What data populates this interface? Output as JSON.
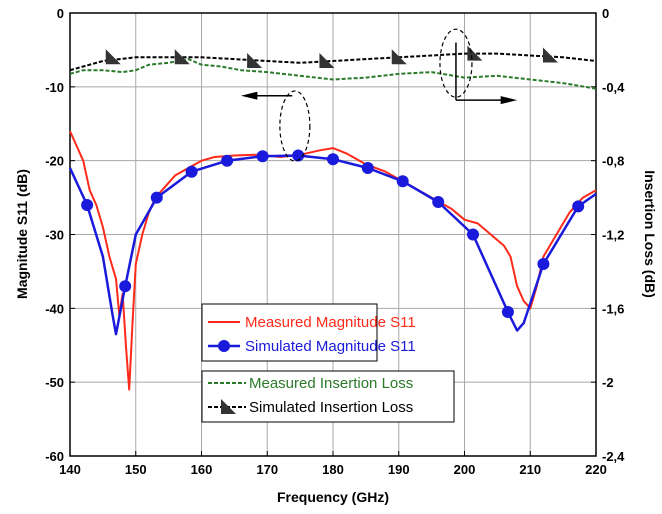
{
  "chart_data": {
    "type": "line",
    "xlabel": "Frequency (GHz)",
    "ylabel_left": "Magnitude S11 (dB)",
    "ylabel_right": "Insertion Loss (dB)",
    "xlim": [
      140,
      220
    ],
    "ylim_left": [
      -60,
      0
    ],
    "ylim_right": [
      -2.4,
      0
    ],
    "x_ticks": [
      "140",
      "150",
      "160",
      "170",
      "180",
      "190",
      "200",
      "210",
      "220"
    ],
    "y_left_ticks": [
      "0",
      "-10",
      "-20",
      "-30",
      "-40",
      "-50",
      "-60"
    ],
    "y_right_ticks": [
      "0",
      "-0,4",
      "-0,8",
      "-1,2",
      "-1,6",
      "-2",
      "-2,4"
    ],
    "grid": true,
    "series": [
      {
        "name": "Measured Magnitude S11",
        "axis": "left",
        "color": "#ff2a1a",
        "style": "solid",
        "marker": "none",
        "x": [
          140,
          141,
          142,
          143,
          144,
          145,
          146,
          147,
          147.5,
          148,
          148.5,
          149,
          149.5,
          150,
          151,
          152,
          153,
          154,
          155,
          156,
          158,
          160,
          162,
          165,
          168,
          170,
          172,
          175,
          178,
          180,
          182,
          185,
          188,
          190,
          192,
          195,
          198,
          200,
          202,
          204,
          206,
          207,
          208,
          209,
          210,
          211,
          212,
          214,
          216,
          218,
          220
        ],
        "y": [
          -16,
          -18,
          -20,
          -24,
          -26,
          -29,
          -33,
          -36,
          -41,
          -38,
          -45,
          -51,
          -42,
          -34,
          -30,
          -27,
          -25,
          -24,
          -23,
          -22,
          -21,
          -20,
          -19.5,
          -19.3,
          -19.2,
          -19.3,
          -19.5,
          -19.2,
          -18.6,
          -18.3,
          -19,
          -20.5,
          -21.5,
          -22.5,
          -23.5,
          -25,
          -26.5,
          -28,
          -28.5,
          -30,
          -31.5,
          -33,
          -37,
          -39,
          -40,
          -37,
          -33,
          -30,
          -27,
          -25,
          -24
        ]
      },
      {
        "name": "Simulated Magnitude S11",
        "axis": "left",
        "color": "#1a1adc",
        "style": "solid",
        "marker": "circle",
        "x": [
          140,
          142.6,
          145,
          146.5,
          147,
          148.4,
          150,
          153.2,
          158.5,
          163.9,
          169.3,
          174.7,
          180,
          185.3,
          190.6,
          196,
          201.3,
          206.6,
          208,
          209,
          212,
          217.3,
          220
        ],
        "y": [
          -21,
          -26,
          -33,
          -41,
          -43.5,
          -37,
          -30,
          -25,
          -21.5,
          -20,
          -19.4,
          -19.3,
          -19.8,
          -21,
          -22.8,
          -25.6,
          -30,
          -40.5,
          -43,
          -42,
          -34,
          -26.2,
          -24.5
        ],
        "marker_x": [
          142.6,
          148.4,
          153.2,
          158.5,
          163.9,
          169.3,
          174.7,
          180,
          185.3,
          190.6,
          196,
          201.3,
          206.6,
          212,
          217.3
        ],
        "marker_y": [
          -26,
          -37,
          -25,
          -21.5,
          -20,
          -19.4,
          -19.3,
          -19.8,
          -21,
          -22.8,
          -25.6,
          -30,
          -40.5,
          -34,
          -26.2
        ]
      },
      {
        "name": "Measured Insertion Loss",
        "axis": "right",
        "color": "#2a7a2a",
        "style": "dashed",
        "marker": "none",
        "x": [
          140,
          142,
          145,
          148,
          150,
          152,
          155,
          158,
          160,
          163,
          166,
          170,
          175,
          180,
          185,
          190,
          195,
          200,
          205,
          210,
          215,
          220
        ],
        "y": [
          -0.33,
          -0.31,
          -0.31,
          -0.32,
          -0.31,
          -0.28,
          -0.27,
          -0.25,
          -0.28,
          -0.29,
          -0.31,
          -0.32,
          -0.34,
          -0.36,
          -0.35,
          -0.33,
          -0.32,
          -0.35,
          -0.34,
          -0.36,
          -0.38,
          -0.41
        ]
      },
      {
        "name": "Simulated Insertion Loss",
        "axis": "right",
        "color": "#000000",
        "style": "dashed",
        "marker": "triangle",
        "x": [
          140,
          145,
          150,
          155,
          160,
          165,
          170,
          175,
          180,
          185,
          190,
          195,
          200,
          205,
          210,
          215,
          220
        ],
        "y": [
          -0.31,
          -0.26,
          -0.24,
          -0.24,
          -0.24,
          -0.25,
          -0.26,
          -0.27,
          -0.26,
          -0.25,
          -0.24,
          -0.23,
          -0.22,
          -0.22,
          -0.23,
          -0.24,
          -0.26
        ],
        "marker_x": [
          146.5,
          157,
          168,
          179,
          190,
          201.5,
          213
        ],
        "marker_y": [
          -0.24,
          -0.24,
          -0.26,
          -0.26,
          -0.24,
          -0.22,
          -0.23
        ]
      }
    ],
    "legend": {
      "s11": {
        "measured_label": "Measured Magnitude S11",
        "simulated_label": "Simulated Magnitude S11"
      },
      "loss": {
        "measured_label": "Measured Insertion Loss",
        "simulated_label": "Simulated Insertion Loss"
      }
    },
    "annotations": [
      {
        "type": "ellipse-arrow",
        "target": "S11 curves",
        "direction": "left"
      },
      {
        "type": "ellipse-arrow",
        "target": "Insertion loss curves",
        "direction": "right"
      }
    ]
  }
}
